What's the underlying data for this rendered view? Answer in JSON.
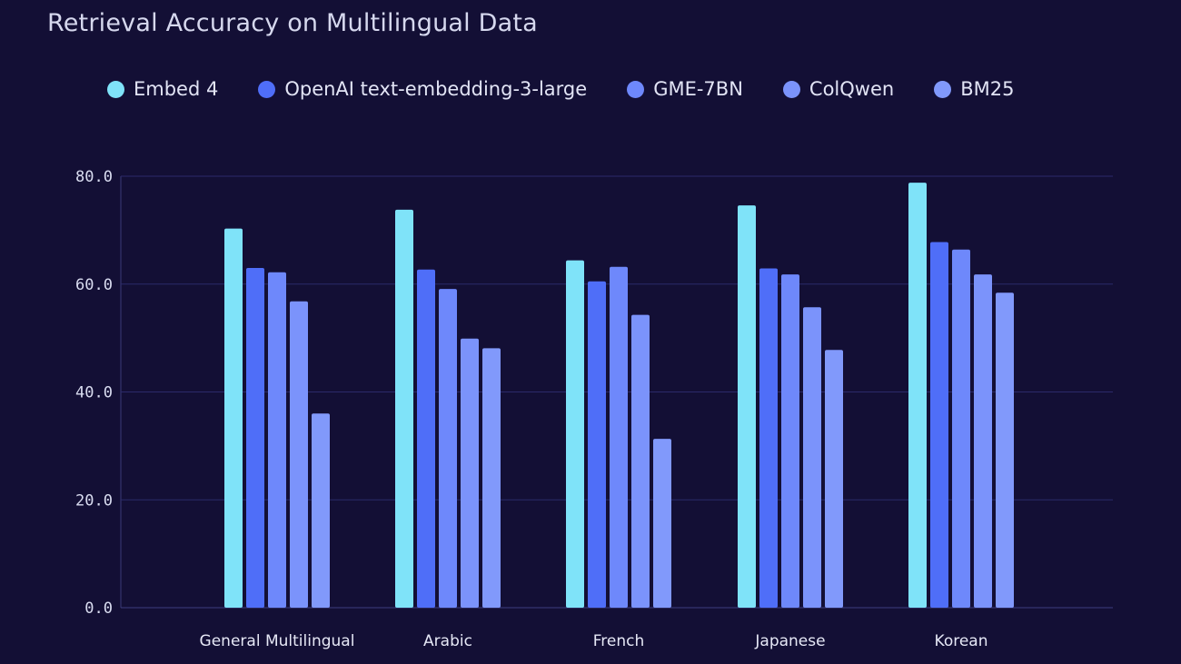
{
  "chart_data": {
    "type": "bar",
    "title": "Retrieval Accuracy on Multilingual Data",
    "xlabel": "",
    "ylabel": "",
    "ylim": [
      0,
      80
    ],
    "yticks": [
      0,
      20,
      40,
      60,
      80
    ],
    "ytick_labels": [
      "0.0",
      "20.0",
      "40.0",
      "60.0",
      "80.0"
    ],
    "grid": true,
    "legend_position": "top",
    "categories": [
      "General Multilingual",
      "Arabic",
      "French",
      "Japanese",
      "Korean"
    ],
    "series": [
      {
        "name": "Embed 4",
        "color": "#7fe3f9",
        "values": [
          70.3,
          73.8,
          64.4,
          74.6,
          78.8
        ]
      },
      {
        "name": "OpenAI text-embedding-3-large",
        "color": "#4f6ef8",
        "values": [
          63.0,
          62.7,
          60.5,
          62.9,
          67.8
        ]
      },
      {
        "name": "GME-7BN",
        "color": "#6e88fb",
        "values": [
          62.2,
          59.1,
          63.2,
          61.8,
          66.4
        ]
      },
      {
        "name": "ColQwen",
        "color": "#7b93fb",
        "values": [
          56.8,
          49.9,
          54.3,
          55.7,
          61.8
        ]
      },
      {
        "name": "BM25",
        "color": "#8199fb",
        "values": [
          36.0,
          48.1,
          31.3,
          47.8,
          58.4
        ]
      }
    ]
  }
}
